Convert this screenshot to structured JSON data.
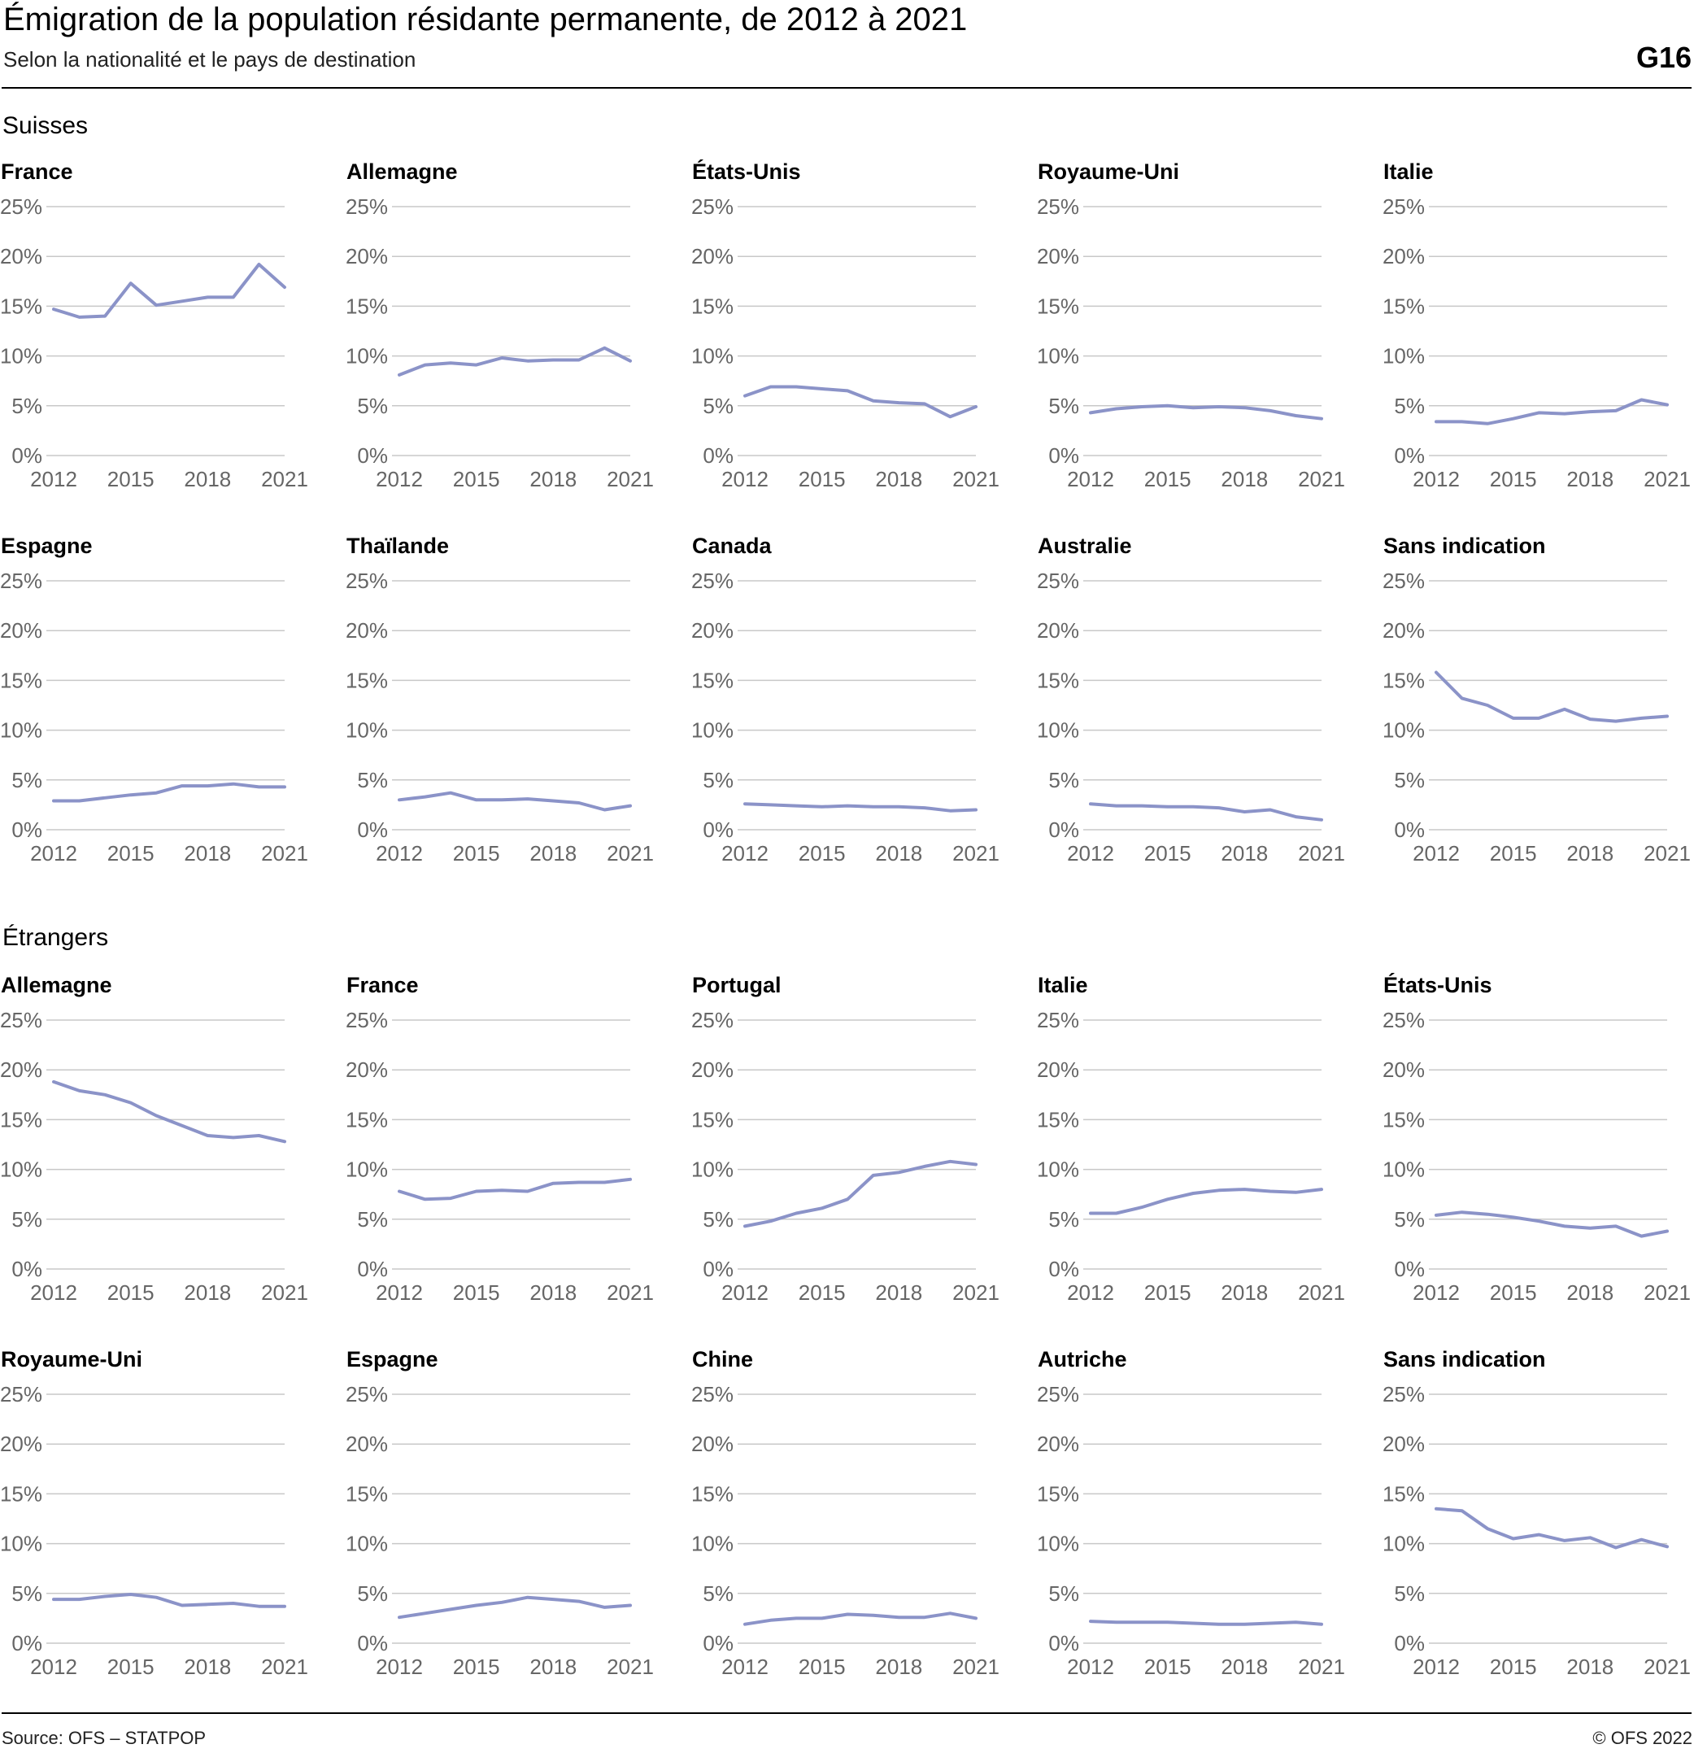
{
  "header": {
    "title": "Émigration de la population résidante permanente, de 2012 à 2021",
    "subtitle": "Selon la nationalité et le pays de destination",
    "code": "G16"
  },
  "sections": {
    "suisses": "Suisses",
    "etrangers": "Étrangers"
  },
  "footer": {
    "source": "Source: OFS – STATPOP",
    "copyright": "© OFS 2022"
  },
  "colors": {
    "line": "#8b93c8",
    "grid": "#c8c8c8",
    "axis_text": "#666666"
  },
  "chart_data": [
    {
      "type": "line",
      "group": "Suisses",
      "title": "France",
      "x": [
        2012,
        2013,
        2014,
        2015,
        2016,
        2017,
        2018,
        2019,
        2020,
        2021
      ],
      "values": [
        14.7,
        13.9,
        14.0,
        17.3,
        15.1,
        15.5,
        15.9,
        15.9,
        19.2,
        16.9
      ],
      "ylim": [
        0,
        25
      ],
      "yticks": [
        "0%",
        "5%",
        "10%",
        "15%",
        "20%",
        "25%"
      ],
      "xticks": [
        "2012",
        "2015",
        "2018",
        "2021"
      ]
    },
    {
      "type": "line",
      "group": "Suisses",
      "title": "Allemagne",
      "x": [
        2012,
        2013,
        2014,
        2015,
        2016,
        2017,
        2018,
        2019,
        2020,
        2021
      ],
      "values": [
        8.1,
        9.1,
        9.3,
        9.1,
        9.8,
        9.5,
        9.6,
        9.6,
        10.8,
        9.5
      ],
      "ylim": [
        0,
        25
      ],
      "yticks": [
        "0%",
        "5%",
        "10%",
        "15%",
        "20%",
        "25%"
      ],
      "xticks": [
        "2012",
        "2015",
        "2018",
        "2021"
      ]
    },
    {
      "type": "line",
      "group": "Suisses",
      "title": "États-Unis",
      "x": [
        2012,
        2013,
        2014,
        2015,
        2016,
        2017,
        2018,
        2019,
        2020,
        2021
      ],
      "values": [
        6.0,
        6.9,
        6.9,
        6.7,
        6.5,
        5.5,
        5.3,
        5.2,
        3.9,
        4.9
      ],
      "ylim": [
        0,
        25
      ],
      "yticks": [
        "0%",
        "5%",
        "10%",
        "15%",
        "20%",
        "25%"
      ],
      "xticks": [
        "2012",
        "2015",
        "2018",
        "2021"
      ]
    },
    {
      "type": "line",
      "group": "Suisses",
      "title": "Royaume-Uni",
      "x": [
        2012,
        2013,
        2014,
        2015,
        2016,
        2017,
        2018,
        2019,
        2020,
        2021
      ],
      "values": [
        4.3,
        4.7,
        4.9,
        5.0,
        4.8,
        4.9,
        4.8,
        4.5,
        4.0,
        3.7
      ],
      "ylim": [
        0,
        25
      ],
      "yticks": [
        "0%",
        "5%",
        "10%",
        "15%",
        "20%",
        "25%"
      ],
      "xticks": [
        "2012",
        "2015",
        "2018",
        "2021"
      ]
    },
    {
      "type": "line",
      "group": "Suisses",
      "title": "Italie",
      "x": [
        2012,
        2013,
        2014,
        2015,
        2016,
        2017,
        2018,
        2019,
        2020,
        2021
      ],
      "values": [
        3.4,
        3.4,
        3.2,
        3.7,
        4.3,
        4.2,
        4.4,
        4.5,
        5.6,
        5.1
      ],
      "ylim": [
        0,
        25
      ],
      "yticks": [
        "0%",
        "5%",
        "10%",
        "15%",
        "20%",
        "25%"
      ],
      "xticks": [
        "2012",
        "2015",
        "2018",
        "2021"
      ]
    },
    {
      "type": "line",
      "group": "Suisses",
      "title": "Espagne",
      "x": [
        2012,
        2013,
        2014,
        2015,
        2016,
        2017,
        2018,
        2019,
        2020,
        2021
      ],
      "values": [
        2.9,
        2.9,
        3.2,
        3.5,
        3.7,
        4.4,
        4.4,
        4.6,
        4.3,
        4.3
      ],
      "ylim": [
        0,
        25
      ],
      "yticks": [
        "0%",
        "5%",
        "10%",
        "15%",
        "20%",
        "25%"
      ],
      "xticks": [
        "2012",
        "2015",
        "2018",
        "2021"
      ]
    },
    {
      "type": "line",
      "group": "Suisses",
      "title": "Thaïlande",
      "x": [
        2012,
        2013,
        2014,
        2015,
        2016,
        2017,
        2018,
        2019,
        2020,
        2021
      ],
      "values": [
        3.0,
        3.3,
        3.7,
        3.0,
        3.0,
        3.1,
        2.9,
        2.7,
        2.0,
        2.4
      ],
      "ylim": [
        0,
        25
      ],
      "yticks": [
        "0%",
        "5%",
        "10%",
        "15%",
        "20%",
        "25%"
      ],
      "xticks": [
        "2012",
        "2015",
        "2018",
        "2021"
      ]
    },
    {
      "type": "line",
      "group": "Suisses",
      "title": "Canada",
      "x": [
        2012,
        2013,
        2014,
        2015,
        2016,
        2017,
        2018,
        2019,
        2020,
        2021
      ],
      "values": [
        2.6,
        2.5,
        2.4,
        2.3,
        2.4,
        2.3,
        2.3,
        2.2,
        1.9,
        2.0
      ],
      "ylim": [
        0,
        25
      ],
      "yticks": [
        "0%",
        "5%",
        "10%",
        "15%",
        "20%",
        "25%"
      ],
      "xticks": [
        "2012",
        "2015",
        "2018",
        "2021"
      ]
    },
    {
      "type": "line",
      "group": "Suisses",
      "title": "Australie",
      "x": [
        2012,
        2013,
        2014,
        2015,
        2016,
        2017,
        2018,
        2019,
        2020,
        2021
      ],
      "values": [
        2.6,
        2.4,
        2.4,
        2.3,
        2.3,
        2.2,
        1.8,
        2.0,
        1.3,
        1.0
      ],
      "ylim": [
        0,
        25
      ],
      "yticks": [
        "0%",
        "5%",
        "10%",
        "15%",
        "20%",
        "25%"
      ],
      "xticks": [
        "2012",
        "2015",
        "2018",
        "2021"
      ]
    },
    {
      "type": "line",
      "group": "Suisses",
      "title": "Sans indication",
      "x": [
        2012,
        2013,
        2014,
        2015,
        2016,
        2017,
        2018,
        2019,
        2020,
        2021
      ],
      "values": [
        15.8,
        13.2,
        12.5,
        11.2,
        11.2,
        12.1,
        11.1,
        10.9,
        11.2,
        11.4
      ],
      "ylim": [
        0,
        25
      ],
      "yticks": [
        "0%",
        "5%",
        "10%",
        "15%",
        "20%",
        "25%"
      ],
      "xticks": [
        "2012",
        "2015",
        "2018",
        "2021"
      ]
    },
    {
      "type": "line",
      "group": "Étrangers",
      "title": "Allemagne",
      "x": [
        2012,
        2013,
        2014,
        2015,
        2016,
        2017,
        2018,
        2019,
        2020,
        2021
      ],
      "values": [
        18.8,
        17.9,
        17.5,
        16.7,
        15.4,
        14.4,
        13.4,
        13.2,
        13.4,
        12.8
      ],
      "ylim": [
        0,
        25
      ],
      "yticks": [
        "0%",
        "5%",
        "10%",
        "15%",
        "20%",
        "25%"
      ],
      "xticks": [
        "2012",
        "2015",
        "2018",
        "2021"
      ]
    },
    {
      "type": "line",
      "group": "Étrangers",
      "title": "France",
      "x": [
        2012,
        2013,
        2014,
        2015,
        2016,
        2017,
        2018,
        2019,
        2020,
        2021
      ],
      "values": [
        7.8,
        7.0,
        7.1,
        7.8,
        7.9,
        7.8,
        8.6,
        8.7,
        8.7,
        9.0
      ],
      "ylim": [
        0,
        25
      ],
      "yticks": [
        "0%",
        "5%",
        "10%",
        "15%",
        "20%",
        "25%"
      ],
      "xticks": [
        "2012",
        "2015",
        "2018",
        "2021"
      ]
    },
    {
      "type": "line",
      "group": "Étrangers",
      "title": "Portugal",
      "x": [
        2012,
        2013,
        2014,
        2015,
        2016,
        2017,
        2018,
        2019,
        2020,
        2021
      ],
      "values": [
        4.3,
        4.8,
        5.6,
        6.1,
        7.0,
        9.4,
        9.7,
        10.3,
        10.8,
        10.5
      ],
      "ylim": [
        0,
        25
      ],
      "yticks": [
        "0%",
        "5%",
        "10%",
        "15%",
        "20%",
        "25%"
      ],
      "xticks": [
        "2012",
        "2015",
        "2018",
        "2021"
      ]
    },
    {
      "type": "line",
      "group": "Étrangers",
      "title": "Italie",
      "x": [
        2012,
        2013,
        2014,
        2015,
        2016,
        2017,
        2018,
        2019,
        2020,
        2021
      ],
      "values": [
        5.6,
        5.6,
        6.2,
        7.0,
        7.6,
        7.9,
        8.0,
        7.8,
        7.7,
        8.0
      ],
      "ylim": [
        0,
        25
      ],
      "yticks": [
        "0%",
        "5%",
        "10%",
        "15%",
        "20%",
        "25%"
      ],
      "xticks": [
        "2012",
        "2015",
        "2018",
        "2021"
      ]
    },
    {
      "type": "line",
      "group": "Étrangers",
      "title": "États-Unis",
      "x": [
        2012,
        2013,
        2014,
        2015,
        2016,
        2017,
        2018,
        2019,
        2020,
        2021
      ],
      "values": [
        5.4,
        5.7,
        5.5,
        5.2,
        4.8,
        4.3,
        4.1,
        4.3,
        3.3,
        3.8
      ],
      "ylim": [
        0,
        25
      ],
      "yticks": [
        "0%",
        "5%",
        "10%",
        "15%",
        "20%",
        "25%"
      ],
      "xticks": [
        "2012",
        "2015",
        "2018",
        "2021"
      ]
    },
    {
      "type": "line",
      "group": "Étrangers",
      "title": "Royaume-Uni",
      "x": [
        2012,
        2013,
        2014,
        2015,
        2016,
        2017,
        2018,
        2019,
        2020,
        2021
      ],
      "values": [
        4.4,
        4.4,
        4.7,
        4.9,
        4.6,
        3.8,
        3.9,
        4.0,
        3.7,
        3.7
      ],
      "ylim": [
        0,
        25
      ],
      "yticks": [
        "0%",
        "5%",
        "10%",
        "15%",
        "20%",
        "25%"
      ],
      "xticks": [
        "2012",
        "2015",
        "2018",
        "2021"
      ]
    },
    {
      "type": "line",
      "group": "Étrangers",
      "title": "Espagne",
      "x": [
        2012,
        2013,
        2014,
        2015,
        2016,
        2017,
        2018,
        2019,
        2020,
        2021
      ],
      "values": [
        2.6,
        3.0,
        3.4,
        3.8,
        4.1,
        4.6,
        4.4,
        4.2,
        3.6,
        3.8
      ],
      "ylim": [
        0,
        25
      ],
      "yticks": [
        "0%",
        "5%",
        "10%",
        "15%",
        "20%",
        "25%"
      ],
      "xticks": [
        "2012",
        "2015",
        "2018",
        "2021"
      ]
    },
    {
      "type": "line",
      "group": "Étrangers",
      "title": "Chine",
      "x": [
        2012,
        2013,
        2014,
        2015,
        2016,
        2017,
        2018,
        2019,
        2020,
        2021
      ],
      "values": [
        1.9,
        2.3,
        2.5,
        2.5,
        2.9,
        2.8,
        2.6,
        2.6,
        3.0,
        2.5
      ],
      "ylim": [
        0,
        25
      ],
      "yticks": [
        "0%",
        "5%",
        "10%",
        "15%",
        "20%",
        "25%"
      ],
      "xticks": [
        "2012",
        "2015",
        "2018",
        "2021"
      ]
    },
    {
      "type": "line",
      "group": "Étrangers",
      "title": "Autriche",
      "x": [
        2012,
        2013,
        2014,
        2015,
        2016,
        2017,
        2018,
        2019,
        2020,
        2021
      ],
      "values": [
        2.2,
        2.1,
        2.1,
        2.1,
        2.0,
        1.9,
        1.9,
        2.0,
        2.1,
        1.9
      ],
      "ylim": [
        0,
        25
      ],
      "yticks": [
        "0%",
        "5%",
        "10%",
        "15%",
        "20%",
        "25%"
      ],
      "xticks": [
        "2012",
        "2015",
        "2018",
        "2021"
      ]
    },
    {
      "type": "line",
      "group": "Étrangers",
      "title": "Sans indication",
      "x": [
        2012,
        2013,
        2014,
        2015,
        2016,
        2017,
        2018,
        2019,
        2020,
        2021
      ],
      "values": [
        13.5,
        13.3,
        11.5,
        10.5,
        10.9,
        10.3,
        10.6,
        9.6,
        10.4,
        9.7
      ],
      "ylim": [
        0,
        25
      ],
      "yticks": [
        "0%",
        "5%",
        "10%",
        "15%",
        "20%",
        "25%"
      ],
      "xticks": [
        "2012",
        "2015",
        "2018",
        "2021"
      ]
    }
  ]
}
